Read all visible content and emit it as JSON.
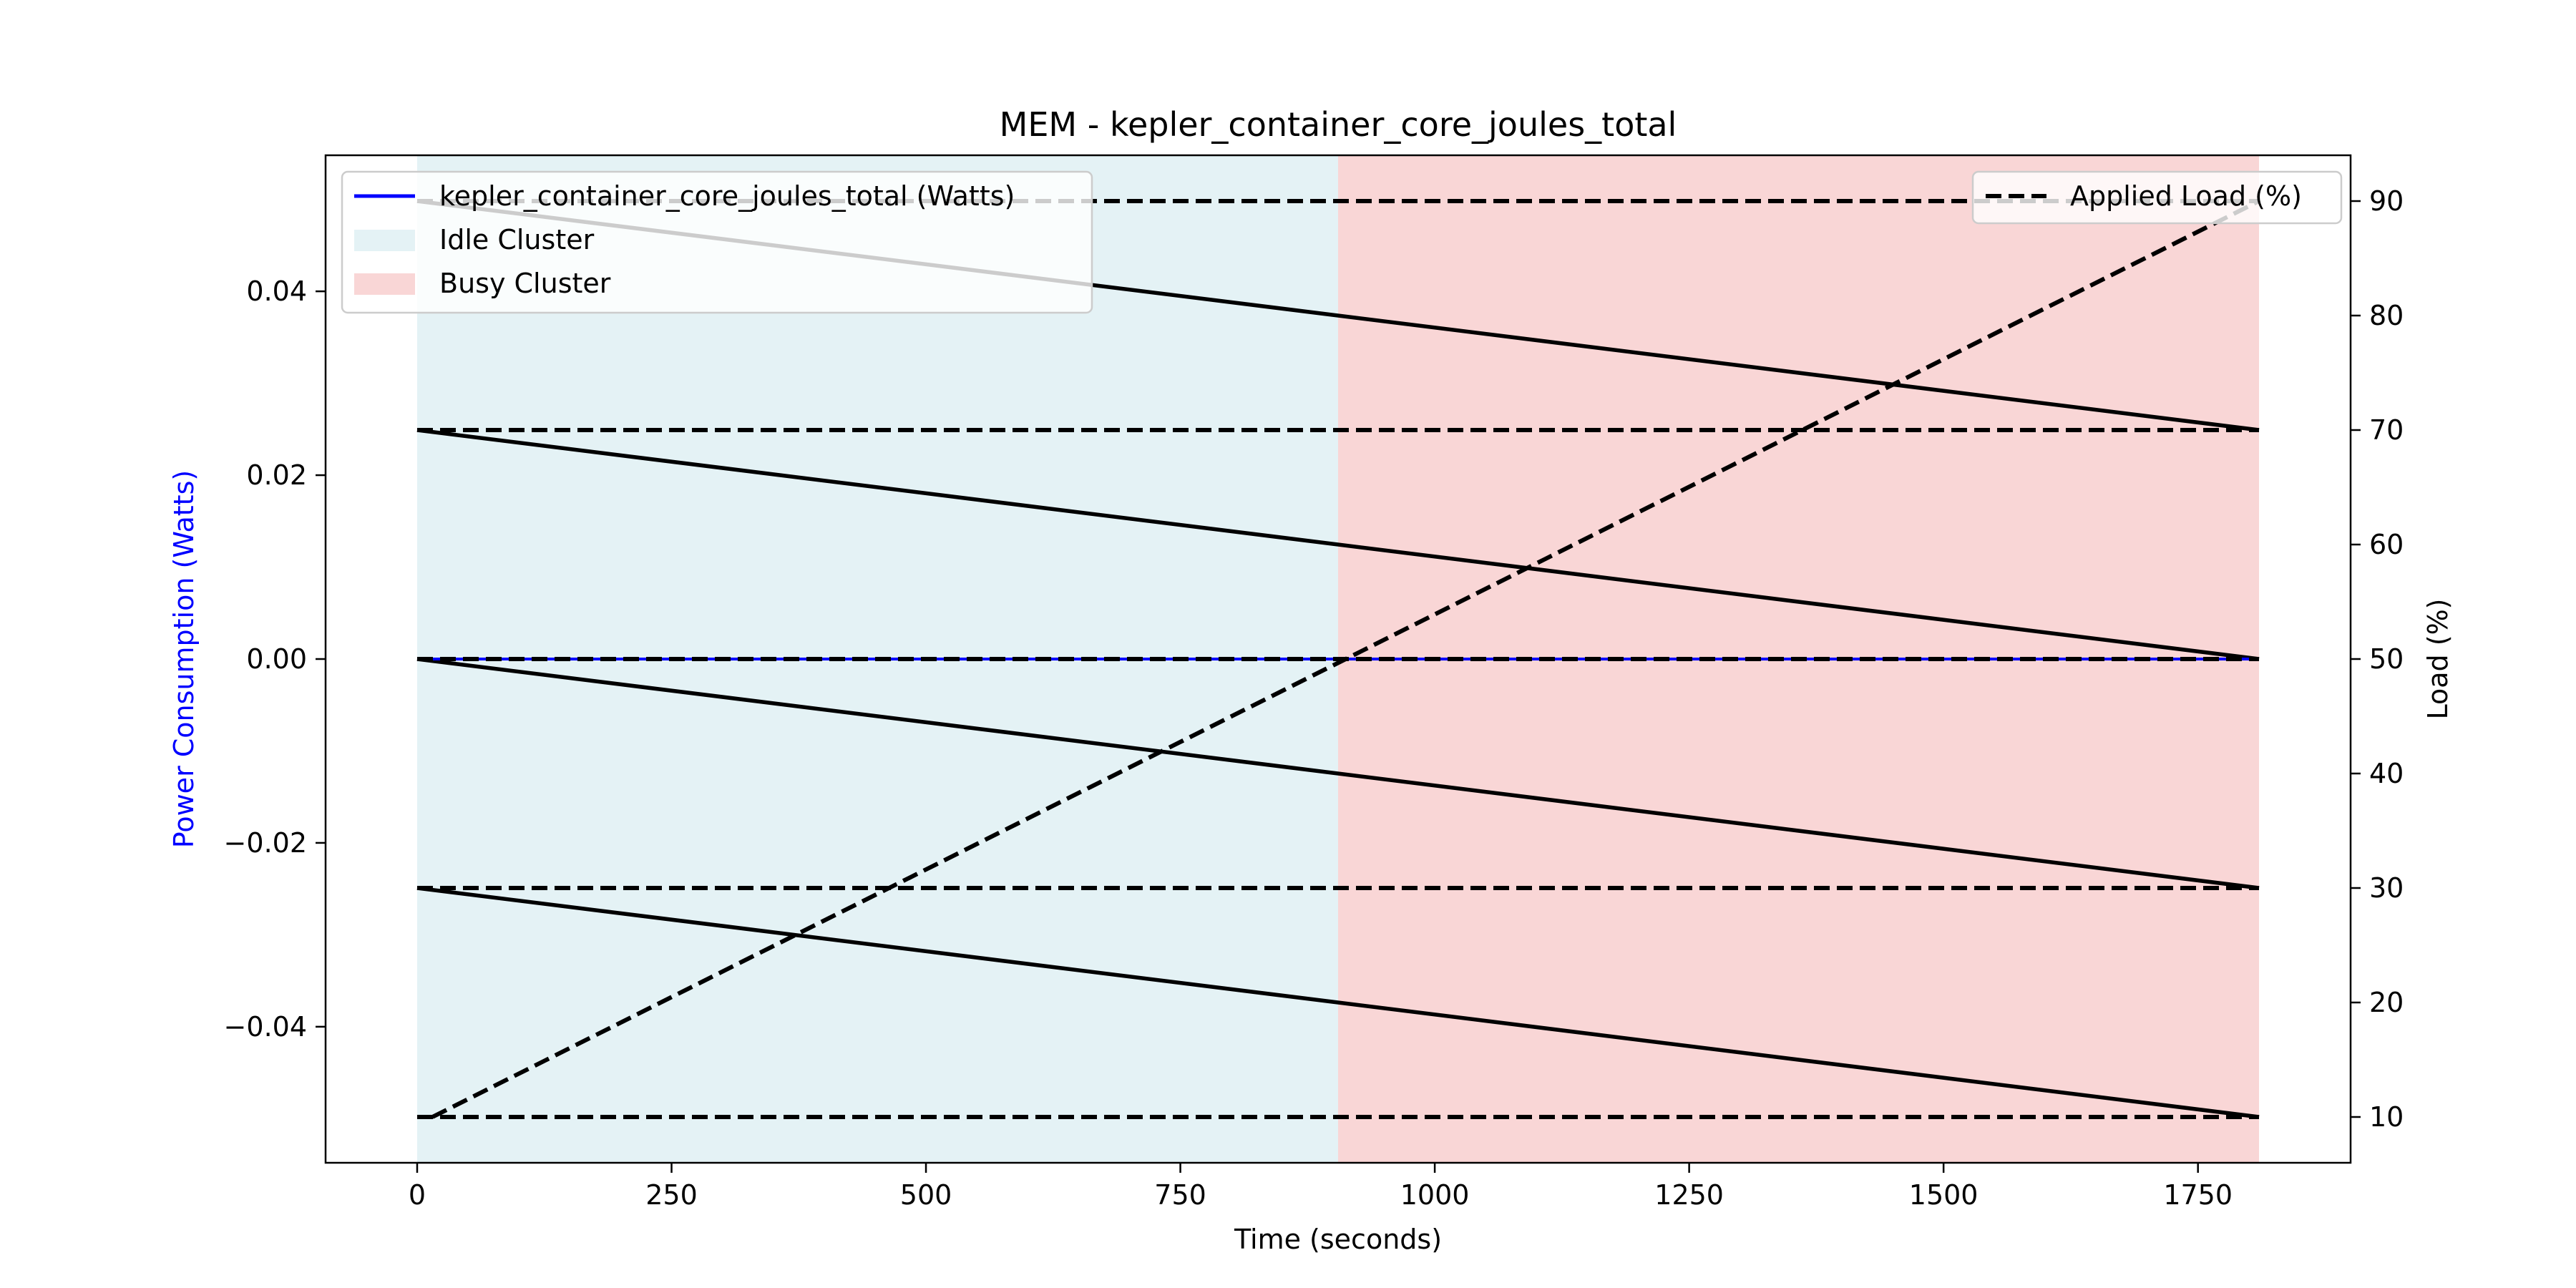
{
  "chart_data": {
    "type": "line",
    "title": "MEM - kepler_container_core_joules_total",
    "xlabel": "Time (seconds)",
    "ylabel": "Power Consumption (Watts)",
    "y2label": "Load (%)",
    "xlim": [
      -90,
      1900
    ],
    "ylim": [
      -0.0548,
      0.0548
    ],
    "y2lim": [
      6,
      94
    ],
    "x_ticks": [
      0,
      250,
      500,
      750,
      1000,
      1250,
      1500,
      1750
    ],
    "x_tick_labels": [
      "0",
      "250",
      "500",
      "750",
      "1000",
      "1250",
      "1500",
      "1750"
    ],
    "y_ticks": [
      -0.04,
      -0.02,
      0.0,
      0.02,
      0.04
    ],
    "y_tick_labels": [
      "−0.04",
      "−0.02",
      "0.00",
      "0.02",
      "0.04"
    ],
    "y2_ticks": [
      10,
      20,
      30,
      40,
      50,
      60,
      70,
      80,
      90
    ],
    "y2_tick_labels": [
      "10",
      "20",
      "30",
      "40",
      "50",
      "60",
      "70",
      "80",
      "90"
    ],
    "regions": [
      {
        "name": "Idle Cluster",
        "x_start": 0,
        "x_end": 905,
        "color": "#e4f2f5"
      },
      {
        "name": "Busy Cluster",
        "x_start": 905,
        "x_end": 1810,
        "color": "#f9d6d6"
      }
    ],
    "series": [
      {
        "name": "kepler_container_core_joules_total (Watts)",
        "axis": "left",
        "color": "#0000ff",
        "style": "solid",
        "x": [
          0,
          1810
        ],
        "y": [
          0.0,
          0.0
        ]
      }
    ],
    "load_series": {
      "name": "Applied Load (%)",
      "axis": "right",
      "color": "#000000",
      "style": "dashed",
      "horizontal_levels": [
        10,
        30,
        50,
        70,
        90
      ],
      "descending_segments": [
        {
          "x": [
            0,
            1810
          ],
          "y": [
            90,
            70
          ]
        },
        {
          "x": [
            0,
            1810
          ],
          "y": [
            70,
            50
          ]
        },
        {
          "x": [
            0,
            1810
          ],
          "y": [
            50,
            30
          ]
        },
        {
          "x": [
            0,
            1810
          ],
          "y": [
            30,
            10
          ]
        }
      ],
      "ramp": {
        "x": [
          15,
          1810
        ],
        "y": [
          10,
          90
        ]
      }
    },
    "legend_left": {
      "position": "upper-left",
      "entries": [
        {
          "label": "kepler_container_core_joules_total (Watts)",
          "kind": "line",
          "color": "#0000ff"
        },
        {
          "label": "Idle Cluster",
          "kind": "patch",
          "color": "#e4f2f5"
        },
        {
          "label": "Busy Cluster",
          "kind": "patch",
          "color": "#f9d6d6"
        }
      ]
    },
    "legend_right": {
      "position": "upper-right",
      "entries": [
        {
          "label": "Applied Load (%)",
          "kind": "dashed-line",
          "color": "#000000"
        }
      ]
    },
    "grid": false
  }
}
